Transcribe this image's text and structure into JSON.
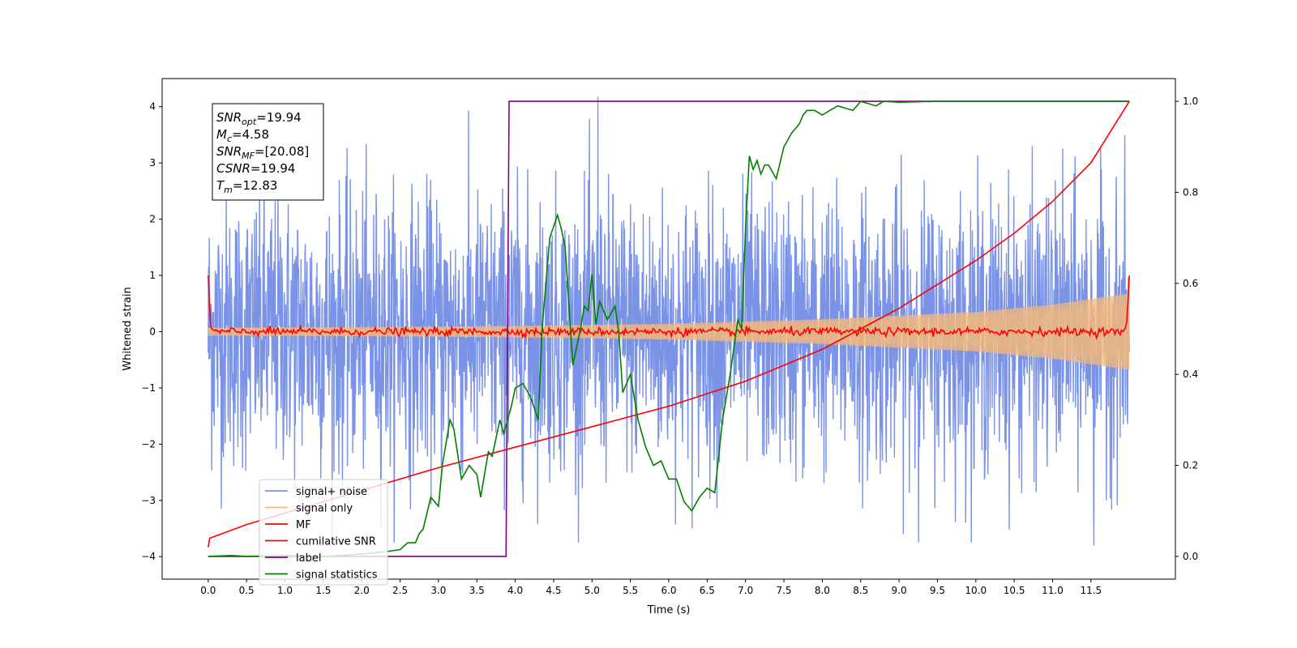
{
  "chart_data": {
    "type": "line",
    "xlabel": "Time (s)",
    "ylabel": "Whitened strain",
    "xlim": [
      -0.6,
      12.6
    ],
    "ylim": [
      -4.4,
      4.5
    ],
    "y2lim": [
      -0.05,
      1.05
    ],
    "xticks": [
      "0.0",
      "0.5",
      "1.0",
      "1.5",
      "2.0",
      "2.5",
      "3.0",
      "3.5",
      "4.0",
      "4.5",
      "5.0",
      "5.5",
      "6.0",
      "6.5",
      "7.0",
      "7.5",
      "8.0",
      "8.5",
      "9.0",
      "9.5",
      "10.0",
      "10.5",
      "11.0",
      "11.5"
    ],
    "yticks": [
      "−4",
      "−3",
      "−2",
      "−1",
      "0",
      "1",
      "2",
      "3",
      "4"
    ],
    "y2ticks": [
      "0.0",
      "0.2",
      "0.4",
      "0.6",
      "0.8",
      "1.0"
    ],
    "grid": false,
    "legend_position": "lower-left",
    "annotation": {
      "lines": [
        {
          "base": "SNR",
          "sub": "opt",
          "value": "=19.94"
        },
        {
          "base": "M",
          "sub": "c",
          "value": "=4.58"
        },
        {
          "base": "SNR",
          "sub": "MF",
          "value": "=[20.08]"
        },
        {
          "base": "CSNR",
          "sub": "",
          "value": "=19.94"
        },
        {
          "base": "T",
          "sub": "m",
          "value": "=12.83"
        }
      ]
    },
    "series": [
      {
        "name": "signal+ noise",
        "color": "#7a93e6",
        "axis": "left",
        "style": "noise",
        "x_range": [
          0.0,
          12.0
        ],
        "amplitude": 1.2,
        "peaks": [
          4.18,
          -3.8
        ]
      },
      {
        "name": "signal only",
        "color": "#f5b97a",
        "axis": "left",
        "style": "chirp-envelope",
        "x": [
          0.0,
          2.0,
          4.0,
          6.0,
          8.0,
          10.0,
          11.0,
          12.0
        ],
        "envelope": [
          0.07,
          0.08,
          0.1,
          0.14,
          0.22,
          0.35,
          0.48,
          0.68
        ]
      },
      {
        "name": "MF",
        "color": "#ff0000",
        "axis": "left",
        "style": "jitter",
        "x": [
          0.0,
          0.03,
          0.06,
          11.94,
          11.97,
          12.0
        ],
        "y": [
          1.0,
          0.1,
          0.02,
          0.02,
          0.2,
          1.0
        ]
      },
      {
        "name": "cumilative SNR",
        "color": "#ff0000",
        "axis": "right",
        "x": [
          0.0,
          0.02,
          0.5,
          1.0,
          2.0,
          3.0,
          4.0,
          5.0,
          6.0,
          7.0,
          8.0,
          8.5,
          9.0,
          10.0,
          10.5,
          11.0,
          11.5,
          12.0
        ],
        "y": [
          0.02,
          0.04,
          0.07,
          0.095,
          0.145,
          0.195,
          0.24,
          0.285,
          0.33,
          0.385,
          0.455,
          0.5,
          0.545,
          0.65,
          0.71,
          0.78,
          0.865,
          1.0
        ]
      },
      {
        "name": "label",
        "color": "#800080",
        "axis": "right",
        "x": [
          0.0,
          3.88,
          3.92,
          12.0
        ],
        "y": [
          0.0,
          0.0,
          1.0,
          1.0
        ]
      },
      {
        "name": "signal statistics",
        "color": "#008000",
        "axis": "right",
        "x": [
          0.0,
          0.3,
          0.5,
          1.0,
          1.5,
          2.0,
          2.3,
          2.5,
          2.6,
          2.7,
          2.75,
          2.8,
          2.9,
          3.0,
          3.05,
          3.15,
          3.2,
          3.3,
          3.4,
          3.5,
          3.55,
          3.65,
          3.7,
          3.8,
          3.85,
          3.95,
          4.0,
          4.1,
          4.2,
          4.3,
          4.35,
          4.45,
          4.55,
          4.6,
          4.65,
          4.75,
          4.85,
          4.9,
          4.95,
          5.0,
          5.05,
          5.1,
          5.2,
          5.3,
          5.35,
          5.4,
          5.5,
          5.6,
          5.7,
          5.8,
          5.9,
          6.0,
          6.1,
          6.2,
          6.3,
          6.4,
          6.5,
          6.6,
          6.65,
          6.7,
          6.8,
          6.9,
          6.95,
          7.0,
          7.05,
          7.1,
          7.15,
          7.2,
          7.25,
          7.3,
          7.4,
          7.5,
          7.6,
          7.7,
          7.75,
          7.8,
          7.9,
          8.0,
          8.1,
          8.2,
          8.3,
          8.4,
          8.5,
          8.6,
          8.7,
          8.8,
          9.0,
          9.5,
          10.0,
          12.0
        ],
        "y": [
          0.0,
          0.002,
          0.0,
          0.002,
          0.0,
          0.005,
          0.01,
          0.015,
          0.03,
          0.03,
          0.05,
          0.06,
          0.13,
          0.11,
          0.2,
          0.3,
          0.28,
          0.17,
          0.2,
          0.18,
          0.13,
          0.23,
          0.22,
          0.3,
          0.27,
          0.33,
          0.37,
          0.38,
          0.35,
          0.3,
          0.5,
          0.7,
          0.75,
          0.72,
          0.68,
          0.42,
          0.5,
          0.55,
          0.54,
          0.62,
          0.51,
          0.56,
          0.52,
          0.55,
          0.49,
          0.36,
          0.4,
          0.3,
          0.24,
          0.2,
          0.21,
          0.17,
          0.17,
          0.12,
          0.1,
          0.13,
          0.15,
          0.14,
          0.22,
          0.3,
          0.4,
          0.52,
          0.5,
          0.72,
          0.88,
          0.85,
          0.87,
          0.84,
          0.86,
          0.86,
          0.83,
          0.9,
          0.93,
          0.95,
          0.97,
          0.98,
          0.98,
          0.97,
          0.98,
          0.99,
          0.985,
          0.98,
          1.0,
          0.995,
          0.99,
          1.0,
          0.998,
          1.0,
          1.0,
          1.0
        ]
      }
    ]
  }
}
